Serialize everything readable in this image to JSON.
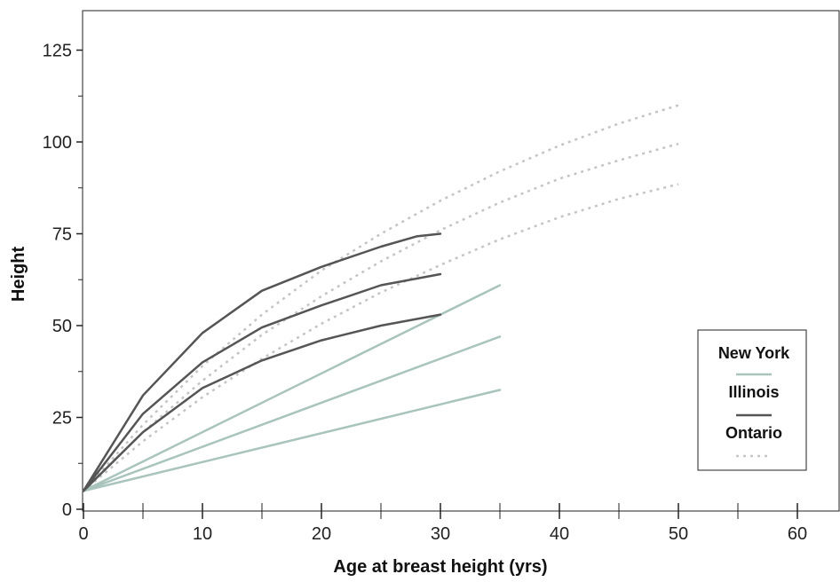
{
  "chart_data": {
    "type": "line",
    "title": "",
    "xlabel": "Age at breast height (yrs)",
    "ylabel": "Height",
    "xlim": [
      0,
      63
    ],
    "ylim": [
      0,
      135
    ],
    "xticks": [
      0,
      10,
      20,
      30,
      40,
      50,
      60
    ],
    "xticks_minor": [
      5,
      15,
      25,
      35,
      45,
      55
    ],
    "yticks": [
      0,
      25,
      50,
      75,
      100,
      125
    ],
    "yticks_minor": [
      12.5,
      37.5,
      62.5,
      87.5,
      112.5
    ],
    "grid": false,
    "legend_position": "right",
    "legend": [
      {
        "label": "New York",
        "key": "ny"
      },
      {
        "label": "Illinois",
        "key": "il"
      },
      {
        "label": "Ontario",
        "key": "on"
      }
    ],
    "styles": {
      "ny": {
        "color": "#a8c4bc",
        "dash": ""
      },
      "il": {
        "color": "#555555",
        "dash": ""
      },
      "on": {
        "color": "#c4c4c4",
        "dash": "3,5"
      }
    },
    "series": [
      {
        "group": "ny",
        "points": [
          [
            0,
            5
          ],
          [
            35,
            61
          ]
        ]
      },
      {
        "group": "ny",
        "points": [
          [
            0,
            5
          ],
          [
            35,
            47
          ]
        ]
      },
      {
        "group": "ny",
        "points": [
          [
            0,
            5
          ],
          [
            35,
            32.5
          ]
        ]
      },
      {
        "group": "il",
        "points": [
          [
            0,
            5
          ],
          [
            5,
            31
          ],
          [
            10,
            48
          ],
          [
            15,
            59.5
          ],
          [
            20,
            66
          ],
          [
            25,
            71.5
          ],
          [
            28,
            74.3
          ],
          [
            30,
            75
          ]
        ]
      },
      {
        "group": "il",
        "points": [
          [
            0,
            5
          ],
          [
            5,
            26
          ],
          [
            10,
            40
          ],
          [
            15,
            49.5
          ],
          [
            20,
            55.5
          ],
          [
            25,
            61
          ],
          [
            30,
            64
          ]
        ]
      },
      {
        "group": "il",
        "points": [
          [
            0,
            5
          ],
          [
            5,
            21
          ],
          [
            10,
            33
          ],
          [
            15,
            40.5
          ],
          [
            20,
            46
          ],
          [
            25,
            50
          ],
          [
            30,
            53
          ]
        ]
      },
      {
        "group": "on",
        "points": [
          [
            0,
            5
          ],
          [
            5,
            23
          ],
          [
            10,
            39
          ],
          [
            15,
            53
          ],
          [
            20,
            65
          ],
          [
            25,
            75
          ],
          [
            30,
            84
          ],
          [
            35,
            92
          ],
          [
            40,
            99
          ],
          [
            45,
            105
          ],
          [
            50,
            110
          ]
        ]
      },
      {
        "group": "on",
        "points": [
          [
            0,
            5
          ],
          [
            5,
            21
          ],
          [
            10,
            35
          ],
          [
            15,
            47.5
          ],
          [
            20,
            58
          ],
          [
            25,
            67.5
          ],
          [
            30,
            76
          ],
          [
            35,
            83.5
          ],
          [
            40,
            90
          ],
          [
            45,
            95
          ],
          [
            50,
            99.5
          ]
        ]
      },
      {
        "group": "on",
        "points": [
          [
            0,
            5
          ],
          [
            5,
            18.5
          ],
          [
            10,
            30.5
          ],
          [
            15,
            41
          ],
          [
            20,
            50.5
          ],
          [
            25,
            59
          ],
          [
            30,
            66.5
          ],
          [
            35,
            73.5
          ],
          [
            40,
            79.5
          ],
          [
            45,
            84.5
          ],
          [
            50,
            88.5
          ]
        ]
      }
    ]
  }
}
